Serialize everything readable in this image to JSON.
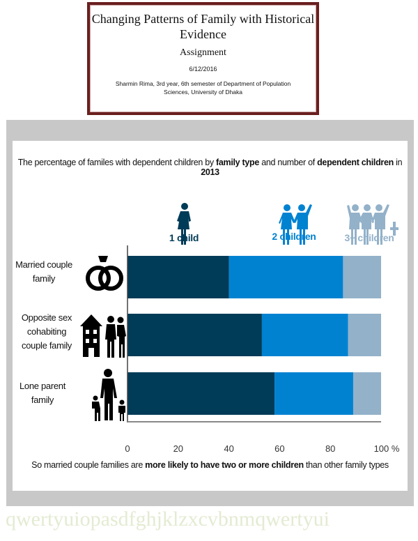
{
  "cover": {
    "title": "Changing Patterns of Family with Historical Evidence",
    "subtitle": "Assignment",
    "date": "6/12/2016",
    "author_line1": "Sharmin Rima, 3rd year, 6th semester of Department of Population",
    "author_line2": "Sciences, University of Dhaka"
  },
  "chart_data": {
    "type": "bar",
    "orientation": "horizontal",
    "stacked": true,
    "title_parts": [
      "The percentage of familes with dependent children by ",
      "family type",
      " and number of ",
      "dependent children",
      " in ",
      "2013"
    ],
    "categories": [
      "Married couple family",
      "Opposite sex cohabiting couple family",
      "Lone parent family"
    ],
    "series": [
      {
        "name": "1 child",
        "values": [
          40,
          53,
          58
        ],
        "color": "#003b57"
      },
      {
        "name": "2 children",
        "values": [
          45,
          34,
          31
        ],
        "color": "#0082d1"
      },
      {
        "name": "3+ children",
        "values": [
          15,
          13,
          11
        ],
        "color": "#93b1c9"
      }
    ],
    "xlim": [
      0,
      100
    ],
    "xticks": [
      "0",
      "20",
      "40",
      "60",
      "80",
      "100 %"
    ],
    "grid": false,
    "legend_placement": "top",
    "category_icons": [
      "wedding-rings-icon",
      "house-and-couple-icon",
      "parent-with-children-icon"
    ],
    "note_parts": [
      "So married couple families are ",
      "more likely to have two or more children",
      " than other family types"
    ]
  },
  "filler_text": "qwertyuiopasdfghjklzxcvbnmqwertyui"
}
